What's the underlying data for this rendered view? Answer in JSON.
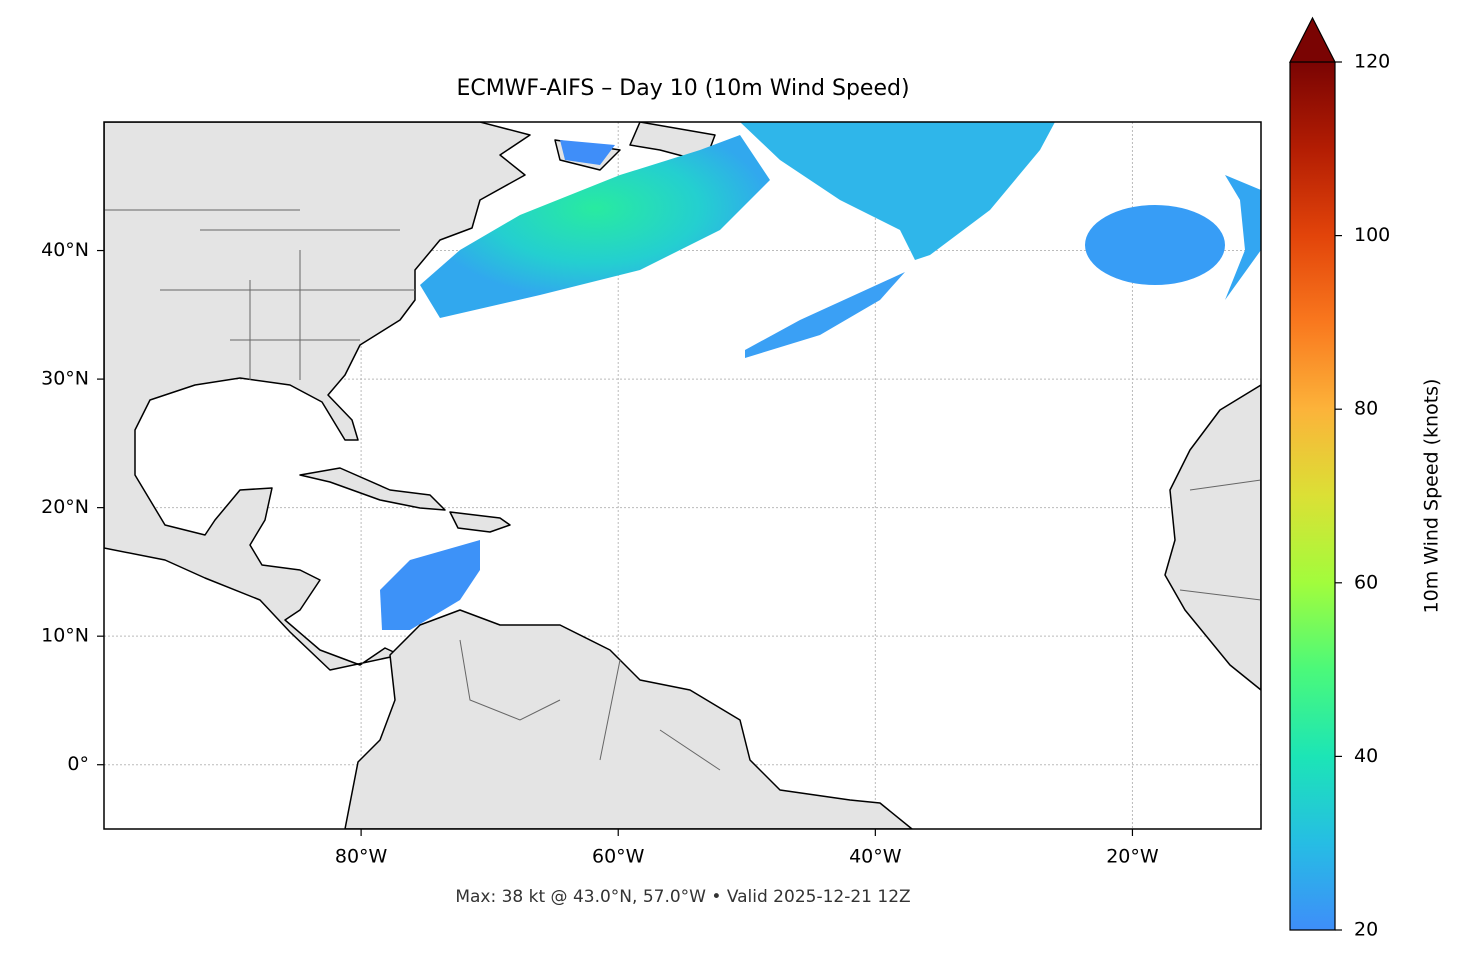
{
  "map": {
    "title": "ECMWF-AIFS – Day 10 (10m Wind Speed)",
    "lon_range": [
      -100,
      -10
    ],
    "lat_range": [
      -5,
      50
    ],
    "lon_ticks": [
      {
        "value": -80,
        "label": "80°W"
      },
      {
        "value": -60,
        "label": "60°W"
      },
      {
        "value": -40,
        "label": "40°W"
      },
      {
        "value": -20,
        "label": "20°W"
      }
    ],
    "lat_ticks": [
      {
        "value": 0,
        "label": "0°"
      },
      {
        "value": 10,
        "label": "10°N"
      },
      {
        "value": 20,
        "label": "20°N"
      },
      {
        "value": 30,
        "label": "30°N"
      },
      {
        "value": 40,
        "label": "40°N"
      }
    ],
    "footnote": "Max: 38 kt @ 43.0°N, 57.0°W • Valid 2025-12-21 12Z"
  },
  "colorbar": {
    "label": "10m Wind Speed (knots)",
    "range": [
      20,
      120
    ],
    "ticks": [
      20,
      40,
      60,
      80,
      100,
      120
    ]
  }
}
